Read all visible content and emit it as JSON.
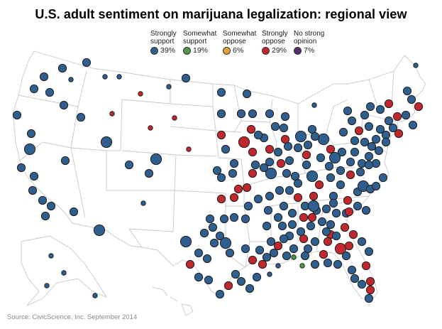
{
  "title": "U.S. adult sentiment on marijuana legalization: regional view",
  "source": "Source: CivicScience, Inc. September 2014",
  "legend": [
    {
      "label": "Strongly\nsupport",
      "value": "39%",
      "color": "#2e5f8e"
    },
    {
      "label": "Somewhat\nsupport",
      "value": "19%",
      "color": "#4f9a48"
    },
    {
      "label": "Somewhat\noppose",
      "value": "6%",
      "color": "#e2a23a"
    },
    {
      "label": "Strongly\noppose",
      "value": "29%",
      "color": "#c1272d"
    },
    {
      "label": "No strong\nopinion",
      "value": "7%",
      "color": "#5b2d6e"
    }
  ],
  "regions": [
    {
      "c": "b",
      "s": "m"
    },
    {
      "c": "b",
      "s": "m"
    },
    {
      "c": "b",
      "s": "m"
    },
    {
      "c": "b",
      "s": "m"
    },
    {
      "c": "b",
      "s": "m"
    },
    {
      "c": "b",
      "s": "s"
    },
    {
      "c": "b",
      "s": "s"
    },
    {
      "c": "b",
      "s": "s"
    },
    {
      "c": "r",
      "s": "s"
    },
    {
      "c": "b",
      "s": "s"
    },
    {
      "c": "b",
      "s": "m"
    },
    {
      "c": "b",
      "s": "m"
    },
    {
      "c": "b",
      "s": "m"
    },
    {
      "c": "b",
      "s": "m"
    },
    {
      "c": "b",
      "s": "l"
    },
    {
      "c": "b",
      "s": "m"
    },
    {
      "c": "r",
      "s": "s"
    },
    {
      "c": "b",
      "s": "m"
    },
    {
      "c": "r",
      "s": "s"
    },
    {
      "c": "r",
      "s": "s"
    },
    {
      "c": "b",
      "s": "m"
    },
    {
      "c": "b",
      "s": "l"
    },
    {
      "c": "b",
      "s": "m"
    },
    {
      "c": "b",
      "s": "m"
    },
    {
      "c": "b",
      "s": "l"
    },
    {
      "c": "b",
      "s": "m"
    },
    {
      "c": "b",
      "s": "m"
    },
    {
      "c": "b",
      "s": "m"
    },
    {
      "c": "b",
      "s": "m"
    },
    {
      "c": "b",
      "s": "m"
    },
    {
      "c": "b",
      "s": "m"
    },
    {
      "c": "b",
      "s": "m"
    },
    {
      "c": "b",
      "s": "m"
    },
    {
      "c": "r",
      "s": "s"
    },
    {
      "c": "b",
      "s": "s"
    },
    {
      "c": "b",
      "s": "l"
    },
    {
      "c": "b",
      "s": "m"
    },
    {
      "c": "b",
      "s": "m"
    },
    {
      "c": "b",
      "s": "m"
    },
    {
      "c": "r",
      "s": "m"
    },
    {
      "c": "b",
      "s": "m"
    },
    {
      "c": "b",
      "s": "m"
    },
    {
      "c": "b",
      "s": "m"
    },
    {
      "c": "r",
      "s": "m"
    },
    {
      "c": "r",
      "s": "l"
    },
    {
      "c": "r",
      "s": "m"
    },
    {
      "c": "b",
      "s": "m"
    },
    {
      "c": "r",
      "s": "m"
    },
    {
      "c": "b",
      "s": "m"
    },
    {
      "c": "b",
      "s": "m"
    },
    {
      "c": "b",
      "s": "m"
    },
    {
      "c": "b",
      "s": "m"
    },
    {
      "c": "b",
      "s": "l"
    },
    {
      "c": "r",
      "s": "m"
    },
    {
      "c": "r",
      "s": "m"
    },
    {
      "c": "b",
      "s": "m"
    },
    {
      "c": "b",
      "s": "m"
    },
    {
      "c": "b",
      "s": "m"
    },
    {
      "c": "r",
      "s": "m"
    },
    {
      "c": "b",
      "s": "m"
    },
    {
      "c": "b",
      "s": "m"
    },
    {
      "c": "b",
      "s": "m"
    },
    {
      "c": "b",
      "s": "m"
    },
    {
      "c": "b",
      "s": "m"
    },
    {
      "c": "b",
      "s": "m"
    },
    {
      "c": "b",
      "s": "m"
    },
    {
      "c": "b",
      "s": "m"
    },
    {
      "c": "b",
      "s": "m"
    },
    {
      "c": "b",
      "s": "l"
    },
    {
      "c": "b",
      "s": "m"
    },
    {
      "c": "b",
      "s": "l"
    },
    {
      "c": "b",
      "s": "m"
    },
    {
      "c": "b",
      "s": "m"
    },
    {
      "c": "r",
      "s": "m"
    },
    {
      "c": "b",
      "s": "m"
    },
    {
      "c": "b",
      "s": "m"
    },
    {
      "c": "b",
      "s": "m"
    },
    {
      "c": "b",
      "s": "m"
    },
    {
      "c": "b",
      "s": "m"
    },
    {
      "c": "b",
      "s": "m"
    },
    {
      "c": "b",
      "s": "m"
    },
    {
      "c": "b",
      "s": "m"
    },
    {
      "c": "b",
      "s": "m"
    },
    {
      "c": "b",
      "s": "m"
    },
    {
      "c": "b",
      "s": "l"
    },
    {
      "c": "b",
      "s": "m"
    },
    {
      "c": "b",
      "s": "l"
    },
    {
      "c": "b",
      "s": "m"
    },
    {
      "c": "r",
      "s": "m"
    },
    {
      "c": "b",
      "s": "m"
    },
    {
      "c": "b",
      "s": "l"
    },
    {
      "c": "r",
      "s": "m"
    },
    {
      "c": "b",
      "s": "m"
    },
    {
      "c": "b",
      "s": "m"
    },
    {
      "c": "b",
      "s": "m"
    },
    {
      "c": "r",
      "s": "m"
    },
    {
      "c": "b",
      "s": "m"
    },
    {
      "c": "b",
      "s": "m"
    },
    {
      "c": "b",
      "s": "m"
    },
    {
      "c": "b",
      "s": "l"
    },
    {
      "c": "b",
      "s": "m"
    },
    {
      "c": "b",
      "s": "m"
    },
    {
      "c": "r",
      "s": "m"
    },
    {
      "c": "b",
      "s": "m"
    },
    {
      "c": "b",
      "s": "m"
    },
    {
      "c": "b",
      "s": "m"
    },
    {
      "c": "b",
      "s": "m"
    },
    {
      "c": "b",
      "s": "m"
    },
    {
      "c": "b",
      "s": "m"
    },
    {
      "c": "r",
      "s": "m"
    },
    {
      "c": "b",
      "s": "m"
    },
    {
      "c": "r",
      "s": "m"
    },
    {
      "c": "b",
      "s": "m"
    },
    {
      "c": "b",
      "s": "m"
    },
    {
      "c": "r",
      "s": "m"
    },
    {
      "c": "b",
      "s": "m"
    },
    {
      "c": "b",
      "s": "m"
    },
    {
      "c": "r",
      "s": "m"
    },
    {
      "c": "r",
      "s": "l"
    },
    {
      "c": "r",
      "s": "m"
    },
    {
      "c": "b",
      "s": "m"
    },
    {
      "c": "b",
      "s": "m"
    },
    {
      "c": "b",
      "s": "m"
    },
    {
      "c": "r",
      "s": "m"
    },
    {
      "c": "b",
      "s": "m"
    },
    {
      "c": "b",
      "s": "m"
    },
    {
      "c": "b",
      "s": "m"
    },
    {
      "c": "b",
      "s": "m"
    },
    {
      "c": "b",
      "s": "m"
    },
    {
      "c": "b",
      "s": "m"
    },
    {
      "c": "r",
      "s": "m"
    },
    {
      "c": "b",
      "s": "m"
    },
    {
      "c": "b",
      "s": "m"
    },
    {
      "c": "b",
      "s": "m"
    },
    {
      "c": "r",
      "s": "m"
    },
    {
      "c": "b",
      "s": "m"
    },
    {
      "c": "r",
      "s": "m"
    },
    {
      "c": "b",
      "s": "m"
    },
    {
      "c": "b",
      "s": "m"
    },
    {
      "c": "b",
      "s": "m"
    },
    {
      "c": "b",
      "s": "m"
    },
    {
      "c": "r",
      "s": "m"
    },
    {
      "c": "b",
      "s": "m"
    },
    {
      "c": "b",
      "s": "m"
    },
    {
      "c": "b",
      "s": "m"
    },
    {
      "c": "r",
      "s": "m"
    },
    {
      "c": "b",
      "s": "m"
    },
    {
      "c": "b",
      "s": "m"
    },
    {
      "c": "b",
      "s": "m"
    },
    {
      "c": "b",
      "s": "m"
    },
    {
      "c": "b",
      "s": "m"
    },
    {
      "c": "b",
      "s": "m"
    },
    {
      "c": "b",
      "s": "m"
    },
    {
      "c": "b",
      "s": "m"
    },
    {
      "c": "r",
      "s": "m"
    },
    {
      "c": "b",
      "s": "m"
    },
    {
      "c": "r",
      "s": "m"
    },
    {
      "c": "b",
      "s": "m"
    },
    {
      "c": "b",
      "s": "m"
    },
    {
      "c": "r",
      "s": "m"
    },
    {
      "c": "b",
      "s": "m"
    },
    {
      "c": "b",
      "s": "m"
    },
    {
      "c": "b",
      "s": "m"
    },
    {
      "c": "r",
      "s": "m"
    },
    {
      "c": "b",
      "s": "m"
    },
    {
      "c": "b",
      "s": "m"
    },
    {
      "c": "b",
      "s": "m"
    },
    {
      "c": "b",
      "s": "m"
    },
    {
      "c": "b",
      "s": "m"
    },
    {
      "c": "r",
      "s": "m"
    },
    {
      "c": "b",
      "s": "m"
    },
    {
      "c": "b",
      "s": "m"
    },
    {
      "c": "b",
      "s": "m"
    },
    {
      "c": "b",
      "s": "m"
    },
    {
      "c": "b",
      "s": "m"
    },
    {
      "c": "b",
      "s": "m"
    },
    {
      "c": "b",
      "s": "m"
    },
    {
      "c": "r",
      "s": "m"
    },
    {
      "c": "b",
      "s": "m"
    },
    {
      "c": "b",
      "s": "m"
    },
    {
      "c": "b",
      "s": "m"
    },
    {
      "c": "r",
      "s": "m"
    },
    {
      "c": "b",
      "s": "l"
    },
    {
      "c": "b",
      "s": "m"
    },
    {
      "c": "b",
      "s": "m"
    },
    {
      "c": "b",
      "s": "m"
    },
    {
      "c": "b",
      "s": "m"
    },
    {
      "c": "b",
      "s": "m"
    },
    {
      "c": "b",
      "s": "m"
    },
    {
      "c": "b",
      "s": "m"
    },
    {
      "c": "b",
      "s": "m"
    },
    {
      "c": "b",
      "s": "m"
    },
    {
      "c": "r",
      "s": "m"
    },
    {
      "c": "b",
      "s": "m"
    },
    {
      "c": "r",
      "s": "m"
    },
    {
      "c": "r",
      "s": "m"
    },
    {
      "c": "b",
      "s": "m"
    },
    {
      "c": "r",
      "s": "m"
    },
    {
      "c": "b",
      "s": "m"
    },
    {
      "c": "r",
      "s": "m"
    },
    {
      "c": "b",
      "s": "m"
    },
    {
      "c": "b",
      "s": "m"
    },
    {
      "c": "b",
      "s": "m"
    },
    {
      "c": "b",
      "s": "m"
    },
    {
      "c": "b",
      "s": "l"
    },
    {
      "c": "b",
      "s": "m"
    },
    {
      "c": "b",
      "s": "m"
    },
    {
      "c": "r",
      "s": "m"
    },
    {
      "c": "r",
      "s": "m"
    },
    {
      "c": "b",
      "s": "m"
    },
    {
      "c": "b",
      "s": "m"
    },
    {
      "c": "r",
      "s": "m"
    },
    {
      "c": "b",
      "s": "m"
    },
    {
      "c": "b",
      "s": "m"
    },
    {
      "c": "r",
      "s": "m"
    },
    {
      "c": "b",
      "s": "m"
    },
    {
      "c": "r",
      "s": "m"
    },
    {
      "c": "b",
      "s": "m"
    },
    {
      "c": "r",
      "s": "m"
    },
    {
      "c": "b",
      "s": "m"
    },
    {
      "c": "b",
      "s": "m"
    },
    {
      "c": "b",
      "s": "m"
    },
    {
      "c": "g",
      "s": "s"
    },
    {
      "c": "g",
      "s": "s"
    },
    {
      "c": "b",
      "s": "s"
    },
    {
      "c": "b",
      "s": "s"
    },
    {
      "c": "b",
      "s": "s"
    },
    {
      "c": "b",
      "s": "s"
    },
    {
      "c": "b",
      "s": "s"
    },
    {
      "c": "b",
      "s": "s"
    },
    {
      "c": "b",
      "s": "s"
    },
    {
      "c": "b",
      "s": "s"
    }
  ]
}
